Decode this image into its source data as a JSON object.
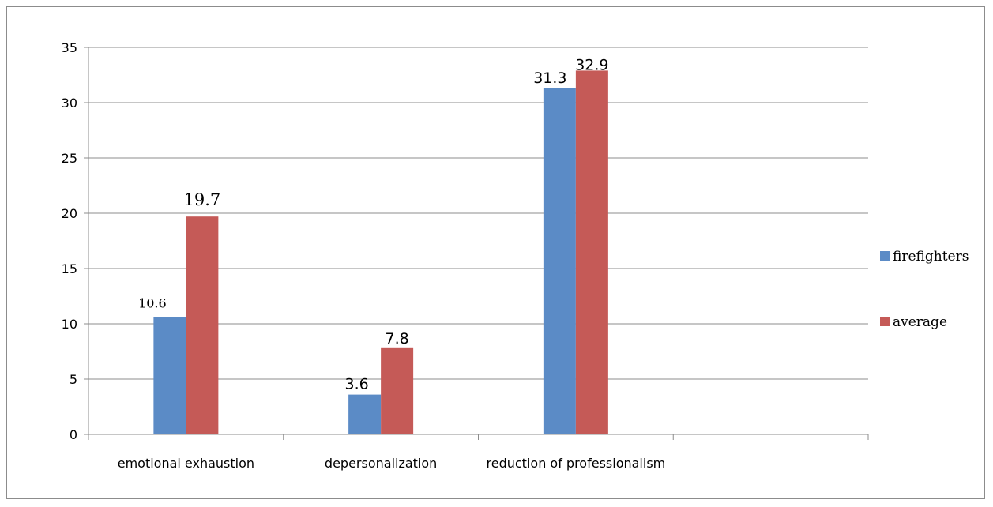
{
  "chart_data": {
    "type": "bar",
    "categories": [
      "emotional exhaustion",
      "depersonalization",
      "reduction of professionalism",
      ""
    ],
    "series": [
      {
        "name": "firefighters",
        "values": [
          10.6,
          3.6,
          31.3,
          null
        ],
        "color": "#5b8bc6"
      },
      {
        "name": "average",
        "values": [
          19.7,
          7.8,
          32.9,
          null
        ],
        "color": "#c55a57"
      }
    ],
    "data_labels": {
      "firefighters": [
        "10.6",
        "3.6",
        "31.3"
      ],
      "average": [
        "19.7",
        "7.8",
        "32.9"
      ]
    },
    "ylim": [
      0,
      35
    ],
    "yticks": [
      0,
      5,
      10,
      15,
      20,
      25,
      30,
      35
    ],
    "grid": true,
    "legend": "right",
    "title": "",
    "xlabel": "",
    "ylabel": ""
  }
}
